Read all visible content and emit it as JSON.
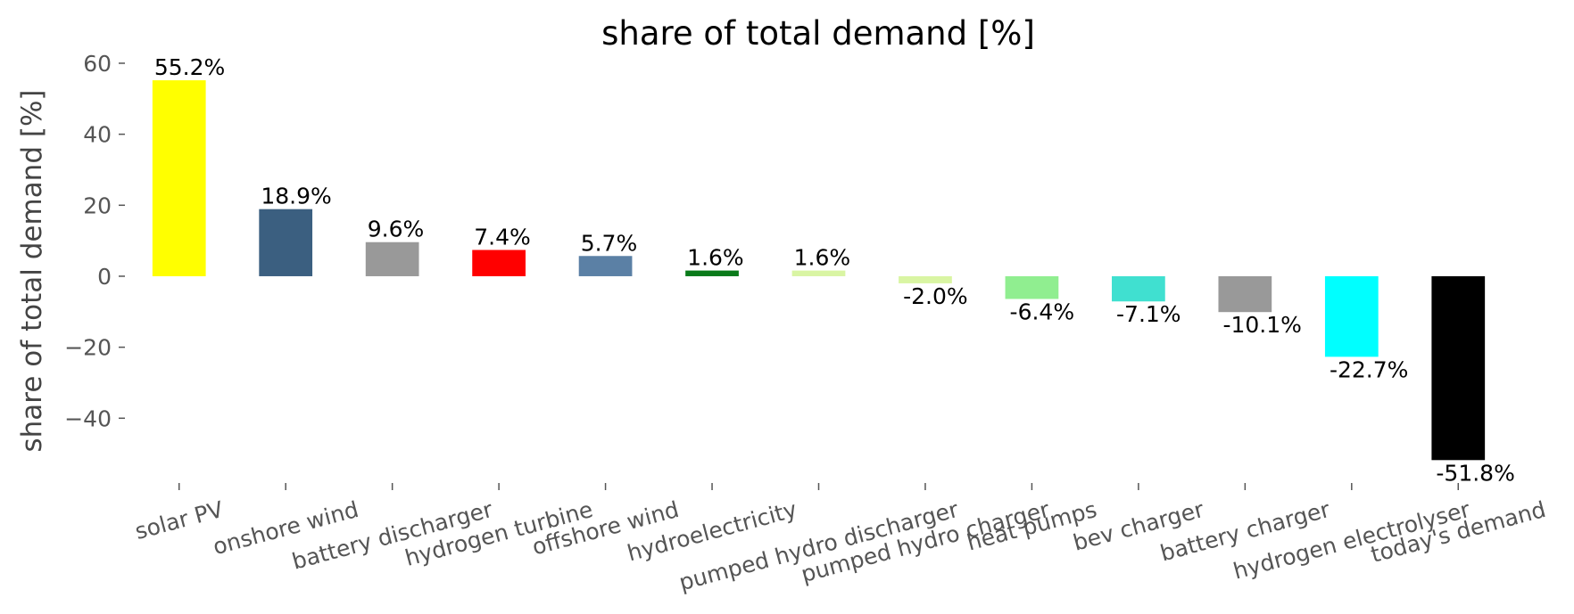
{
  "chart_data": {
    "type": "bar",
    "title": "share of total demand [%]",
    "ylabel": "share of total demand [%]",
    "categories": [
      "solar PV",
      "onshore wind",
      "battery discharger",
      "hydrogen turbine",
      "offshore wind",
      "hydroelectricity",
      "pumped hydro discharger",
      "pumped hydro charger",
      "heat pumps",
      "bev charger",
      "battery charger",
      "hydrogen electrolyser",
      "today's demand"
    ],
    "values": [
      55.2,
      18.9,
      9.6,
      7.4,
      5.7,
      1.6,
      1.6,
      -2.0,
      -6.4,
      -7.1,
      -10.1,
      -22.7,
      -51.8
    ],
    "value_labels": [
      "55.2%",
      "18.9%",
      "9.6%",
      "7.4%",
      "5.7%",
      "1.6%",
      "1.6%",
      "-2.0%",
      "-6.4%",
      "-7.1%",
      "-10.1%",
      "-22.7%",
      "-51.8%"
    ],
    "colors": [
      "#ffff00",
      "#3b5f80",
      "#999999",
      "#ff0000",
      "#5b80a5",
      "#0a7a1a",
      "#d9f5a3",
      "#d9f5a3",
      "#90ee90",
      "#40e0d0",
      "#999999",
      "#00ffff",
      "#000000"
    ],
    "ylim": [
      -58,
      62
    ],
    "yticks": [
      {
        "value": -40,
        "label": "−40"
      },
      {
        "value": -20,
        "label": "−20"
      },
      0,
      20,
      40,
      60
    ],
    "grid": false
  }
}
